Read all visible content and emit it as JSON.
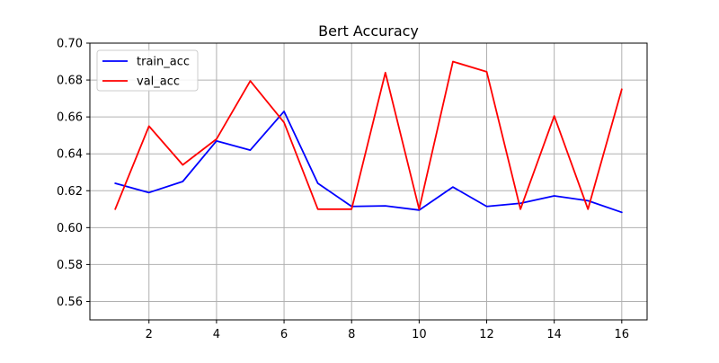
{
  "chart_data": {
    "type": "line",
    "title": "Bert Accuracy",
    "xlabel": "",
    "ylabel": "",
    "xlim": [
      0.25,
      16.75
    ],
    "ylim": [
      0.55,
      0.7
    ],
    "xticks": [
      2,
      4,
      6,
      8,
      10,
      12,
      14,
      16
    ],
    "xtick_labels": [
      "2",
      "4",
      "6",
      "8",
      "10",
      "12",
      "14",
      "16"
    ],
    "yticks": [
      0.56,
      0.58,
      0.6,
      0.62,
      0.64,
      0.66,
      0.68,
      0.7
    ],
    "ytick_labels": [
      "0.56",
      "0.58",
      "0.60",
      "0.62",
      "0.64",
      "0.66",
      "0.68",
      "0.70"
    ],
    "grid": true,
    "legend_position": "top-left",
    "x": [
      1,
      2,
      3,
      4,
      5,
      6,
      7,
      8,
      9,
      10,
      11,
      12,
      13,
      14,
      15,
      16
    ],
    "series": [
      {
        "name": "train_acc",
        "color": "#0000ff",
        "values": [
          0.624,
          0.619,
          0.625,
          0.647,
          0.642,
          0.663,
          0.624,
          0.6115,
          0.6118,
          0.6095,
          0.622,
          0.6115,
          0.6132,
          0.6172,
          0.6146,
          0.6083
        ]
      },
      {
        "name": "val_acc",
        "color": "#ff0000",
        "values": [
          0.61,
          0.655,
          0.634,
          0.648,
          0.6795,
          0.657,
          0.61,
          0.61,
          0.684,
          0.61,
          0.69,
          0.6845,
          0.61,
          0.6605,
          0.61,
          0.675
        ]
      }
    ]
  }
}
